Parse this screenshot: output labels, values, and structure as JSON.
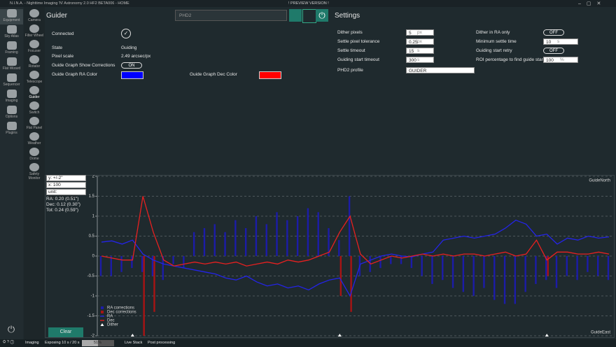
{
  "window": {
    "title": "N.I.N.A. - Nighttime Imaging 'N' Astronomy 2.0 HF2 BETA006 - HOME",
    "banner": "! PREVIEW VERSION !"
  },
  "nav": [
    "Equipment",
    "Sky Atlas",
    "Framing",
    "Flat Wizard",
    "Sequencer",
    "Imaging",
    "Options",
    "Plugins"
  ],
  "equipment_nav": [
    "Camera",
    "Filter Wheel",
    "Focuser",
    "Rotator",
    "Telescope",
    "Guider",
    "Switch",
    "Flat Panel",
    "Weather",
    "Dome",
    "Safety Monitor"
  ],
  "guider": {
    "title": "Guider",
    "device": "PHD2",
    "connected": "Connected",
    "state_label": "State",
    "state": "Guiding",
    "pixel_scale_label": "Pixel scale",
    "pixel_scale": "2.49 arcsec/px",
    "show_corrections_label": "Guide Graph Show Corrections",
    "show_corrections": "ON",
    "ra_color_label": "Guide Graph RA Color",
    "dec_color_label": "Guide Graph Dec Color",
    "ra_color": "#0000ff",
    "dec_color": "#ff0000"
  },
  "settings": {
    "title": "Settings",
    "left": [
      {
        "label": "Dither pixels",
        "value": "5",
        "unit": "px"
      },
      {
        "label": "Settle pixel tolerance",
        "value": "0.25",
        "unit": "px"
      },
      {
        "label": "Settle timeout",
        "value": "15",
        "unit": "s"
      },
      {
        "label": "Guiding start timeout",
        "value": "300",
        "unit": "s"
      }
    ],
    "profile_label": "PHD2 profile",
    "profile": "GUIDER",
    "right": [
      {
        "label": "Dither in RA only",
        "toggle": "OFF"
      },
      {
        "label": "Minimum settle time",
        "value": "10",
        "unit": "s"
      },
      {
        "label": "Guiding start retry",
        "toggle": "OFF"
      },
      {
        "label": "ROI percentage to find guide star",
        "value": "100",
        "unit": "%"
      }
    ]
  },
  "graph_controls": {
    "y_scale": "y: +/-2\"",
    "x_scale": "x: 100",
    "unit": "unit: ARCSECOND",
    "ra_rms": "RA: 0.20 (0.51\")",
    "dec_rms": "Dec: 0.12 (0.30\")",
    "tot_rms": "Tot: 0.24 (0.59\")",
    "clear": "Clear"
  },
  "chart_data": {
    "type": "guide-graph",
    "top_label": "GuideNorth",
    "bottom_label": "GuideEast",
    "ylim": [
      -2,
      2
    ],
    "yticks": [
      2,
      1.5,
      1,
      0.5,
      0,
      -0.5,
      -1,
      -1.5,
      -2
    ],
    "grid": true,
    "series": [
      {
        "name": "RA corrections",
        "kind": "bars",
        "color": "#1c1ca8",
        "values": [
          -0.5,
          -0.5,
          -0.4,
          -0.3,
          -0.4,
          -0.5,
          -0.6,
          -0.2,
          -0.3,
          0.6,
          0.7,
          0.8,
          0.6,
          0.9,
          0.7,
          1.0,
          0.8,
          1.1,
          0.9,
          1.0,
          1.2,
          1.1,
          0.7,
          0.4,
          1.5,
          -0.5,
          -0.4,
          -0.3,
          -0.2,
          -0.2,
          -0.3,
          -0.5,
          -0.7,
          -0.6,
          -0.8,
          -0.9,
          -1.0,
          -0.8,
          -1.1,
          -1.2,
          -1.2,
          -0.9,
          -0.7,
          -0.6,
          -0.8,
          -0.5,
          -0.6,
          -0.4,
          -0.5,
          -0.6
        ]
      },
      {
        "name": "Dec corrections",
        "kind": "bars",
        "color": "#a81414",
        "values": [
          0,
          0,
          0,
          0,
          -2.0,
          -1.4,
          0,
          0,
          0,
          0,
          0,
          0,
          0,
          0,
          0,
          0,
          0,
          0,
          0,
          0,
          0,
          0,
          0,
          -1.0,
          -1.4,
          0,
          0,
          0,
          0,
          0,
          0,
          0,
          0,
          0,
          0,
          0,
          0,
          0,
          0,
          0,
          0,
          0,
          0,
          -0.5,
          0,
          0,
          0,
          0,
          0,
          0
        ]
      },
      {
        "name": "RA",
        "kind": "line",
        "color": "#2424e8",
        "values": [
          0.35,
          0.38,
          0.3,
          0.4,
          0.05,
          -0.1,
          -0.2,
          -0.25,
          -0.3,
          -0.35,
          -0.4,
          -0.45,
          -0.55,
          -0.6,
          -0.5,
          -0.65,
          -0.75,
          -0.7,
          -0.8,
          -0.75,
          -0.85,
          -0.7,
          -0.6,
          -0.55,
          -1.0,
          -0.2,
          -0.1,
          0.0,
          0.05,
          0.0,
          -0.02,
          0.05,
          0.1,
          0.4,
          0.45,
          0.5,
          0.45,
          0.5,
          0.55,
          0.7,
          0.9,
          0.8,
          0.5,
          0.55,
          0.3,
          0.45,
          0.4,
          0.5,
          0.45,
          0.48
        ]
      },
      {
        "name": "Dec",
        "kind": "line",
        "color": "#e82020",
        "values": [
          0.0,
          -0.05,
          -0.1,
          -0.1,
          1.5,
          0.6,
          -0.1,
          -0.25,
          -0.2,
          -0.15,
          -0.2,
          -0.15,
          -0.2,
          -0.15,
          -0.25,
          -0.2,
          -0.15,
          -0.2,
          -0.1,
          -0.15,
          -0.1,
          0.0,
          0.1,
          0.6,
          1.0,
          0.05,
          -0.2,
          -0.1,
          0.0,
          -0.05,
          0.0,
          0.05,
          0.0,
          0.05,
          0.0,
          0.05,
          0.05,
          0.0,
          0.05,
          0.1,
          0.0,
          0.05,
          0.4,
          -0.1,
          0.1,
          0.1,
          0.05,
          0.05,
          0.1,
          0.05
        ]
      }
    ],
    "dither_name": "Dither",
    "dither_at": [
      3,
      23,
      43
    ]
  },
  "status": {
    "imaging": "Imaging",
    "exposure": "Exposing 10 s / 20 s",
    "progress": 51,
    "progress_label": "51%",
    "live_stack": "Live Stack",
    "post": "Post processing"
  }
}
